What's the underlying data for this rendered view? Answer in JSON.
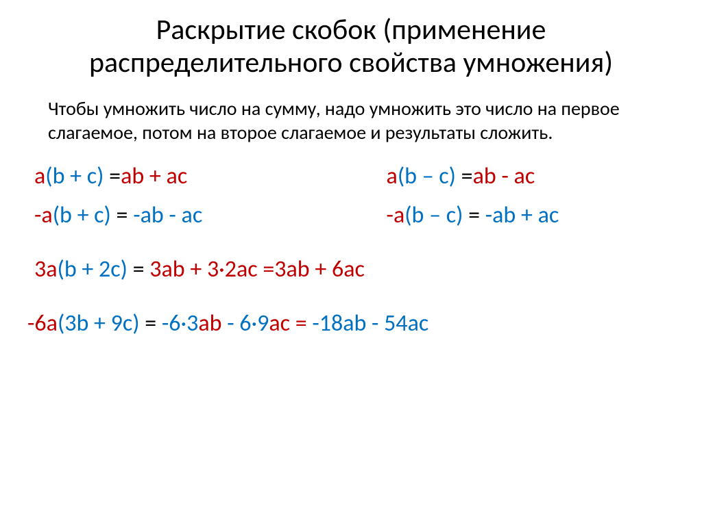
{
  "title": "Раскрытие скобок (применение распределительного свойства умножения)",
  "rule": "Чтобы умножить число на сумму, надо умножить это число на первое слагаемое, потом на второе слагаемое и результаты сложить.",
  "formulas": {
    "f1": {
      "lhs_a": "a",
      "lhs_paren": "(b + c)",
      "eq": " =",
      "rhs": "ab + ac"
    },
    "f2": {
      "lhs_a": "a",
      "lhs_paren": "(b – c)",
      "eq": " =",
      "rhs": "ab - ac"
    },
    "f3": {
      "lhs_a": "-a",
      "lhs_paren": "(b + c)",
      "eq": " = ",
      "rhs": "-ab - ac"
    },
    "f4": {
      "lhs_a": "-a",
      "lhs_paren": "(b – c)",
      "eq": " = ",
      "rhs": "-ab + ac"
    }
  },
  "examples": {
    "e1": {
      "mult": "3a",
      "paren": "(b + 2c)",
      "eq1": " = ",
      "mid": "3ab + 3·2ac =",
      "res": "3ab + 6ac"
    },
    "e2": {
      "mult": "-6a",
      "paren": "(3b + 9c)",
      "eq1": " = ",
      "mid_p1": "-6·3",
      "mid_ab": "ab",
      "mid_p2": " - 6·9",
      "mid_ac": "ac",
      "mid_eq": " = ",
      "res": "-18ab - 54ac"
    }
  },
  "colors": {
    "red": "#c00000",
    "blue": "#0070c0",
    "black": "#000000",
    "bg": "#ffffff"
  }
}
